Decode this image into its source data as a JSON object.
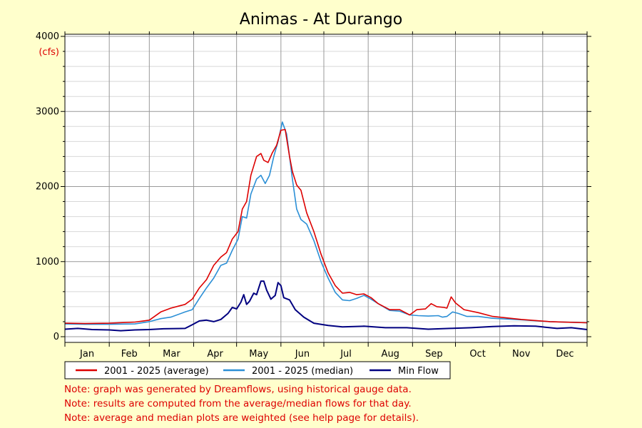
{
  "chart_data": {
    "type": "line",
    "title": "Animas - At Durango",
    "ylabel": "(cfs)",
    "xlabel": "",
    "ylim": [
      0,
      4000
    ],
    "yticks": [
      0,
      1000,
      2000,
      3000,
      4000
    ],
    "xlim": [
      1,
      366
    ],
    "months": [
      "Jan",
      "Feb",
      "Mar",
      "Apr",
      "May",
      "Jun",
      "Jul",
      "Aug",
      "Sep",
      "Oct",
      "Nov",
      "Dec"
    ],
    "grid": true,
    "legend_position": "bottom",
    "series": [
      {
        "name": "2001 - 2025 (average)",
        "color": "#dd0000",
        "points": [
          [
            1,
            180
          ],
          [
            15,
            175
          ],
          [
            32,
            180
          ],
          [
            50,
            195
          ],
          [
            60,
            220
          ],
          [
            68,
            330
          ],
          [
            75,
            380
          ],
          [
            85,
            430
          ],
          [
            90,
            500
          ],
          [
            95,
            650
          ],
          [
            100,
            760
          ],
          [
            105,
            950
          ],
          [
            110,
            1060
          ],
          [
            114,
            1120
          ],
          [
            118,
            1300
          ],
          [
            122,
            1400
          ],
          [
            125,
            1700
          ],
          [
            128,
            1800
          ],
          [
            131,
            2150
          ],
          [
            135,
            2400
          ],
          [
            138,
            2440
          ],
          [
            140,
            2350
          ],
          [
            143,
            2320
          ],
          [
            146,
            2450
          ],
          [
            149,
            2550
          ],
          [
            152,
            2750
          ],
          [
            155,
            2760
          ],
          [
            158,
            2400
          ],
          [
            160,
            2200
          ],
          [
            163,
            2020
          ],
          [
            166,
            1950
          ],
          [
            170,
            1650
          ],
          [
            175,
            1400
          ],
          [
            180,
            1100
          ],
          [
            185,
            850
          ],
          [
            190,
            680
          ],
          [
            195,
            580
          ],
          [
            200,
            590
          ],
          [
            205,
            560
          ],
          [
            210,
            570
          ],
          [
            215,
            520
          ],
          [
            220,
            440
          ],
          [
            228,
            360
          ],
          [
            235,
            360
          ],
          [
            242,
            290
          ],
          [
            247,
            360
          ],
          [
            253,
            370
          ],
          [
            257,
            440
          ],
          [
            261,
            400
          ],
          [
            266,
            390
          ],
          [
            268,
            380
          ],
          [
            271,
            530
          ],
          [
            274,
            450
          ],
          [
            280,
            360
          ],
          [
            290,
            320
          ],
          [
            300,
            270
          ],
          [
            320,
            230
          ],
          [
            340,
            200
          ],
          [
            366,
            185
          ]
        ]
      },
      {
        "name": "2001 - 2025 (median)",
        "color": "#2b8fd6",
        "points": [
          [
            1,
            170
          ],
          [
            15,
            165
          ],
          [
            32,
            165
          ],
          [
            50,
            170
          ],
          [
            60,
            200
          ],
          [
            68,
            240
          ],
          [
            75,
            260
          ],
          [
            85,
            330
          ],
          [
            90,
            360
          ],
          [
            95,
            510
          ],
          [
            100,
            650
          ],
          [
            105,
            780
          ],
          [
            110,
            950
          ],
          [
            114,
            980
          ],
          [
            118,
            1150
          ],
          [
            122,
            1300
          ],
          [
            125,
            1600
          ],
          [
            128,
            1580
          ],
          [
            131,
            1900
          ],
          [
            135,
            2100
          ],
          [
            138,
            2150
          ],
          [
            141,
            2040
          ],
          [
            144,
            2150
          ],
          [
            147,
            2400
          ],
          [
            150,
            2600
          ],
          [
            153,
            2860
          ],
          [
            156,
            2700
          ],
          [
            158,
            2400
          ],
          [
            160,
            2100
          ],
          [
            163,
            1700
          ],
          [
            166,
            1560
          ],
          [
            170,
            1500
          ],
          [
            175,
            1280
          ],
          [
            180,
            1000
          ],
          [
            185,
            780
          ],
          [
            190,
            590
          ],
          [
            195,
            490
          ],
          [
            200,
            480
          ],
          [
            205,
            510
          ],
          [
            210,
            550
          ],
          [
            215,
            500
          ],
          [
            220,
            440
          ],
          [
            228,
            350
          ],
          [
            235,
            340
          ],
          [
            242,
            290
          ],
          [
            248,
            280
          ],
          [
            255,
            275
          ],
          [
            262,
            280
          ],
          [
            265,
            260
          ],
          [
            268,
            270
          ],
          [
            272,
            330
          ],
          [
            276,
            310
          ],
          [
            282,
            270
          ],
          [
            290,
            270
          ],
          [
            300,
            245
          ],
          [
            320,
            225
          ],
          [
            340,
            200
          ],
          [
            366,
            185
          ]
        ]
      },
      {
        "name": "Min Flow",
        "color": "#000080",
        "points": [
          [
            1,
            100
          ],
          [
            10,
            110
          ],
          [
            20,
            95
          ],
          [
            32,
            90
          ],
          [
            40,
            80
          ],
          [
            50,
            90
          ],
          [
            60,
            95
          ],
          [
            70,
            105
          ],
          [
            85,
            110
          ],
          [
            90,
            160
          ],
          [
            95,
            210
          ],
          [
            100,
            220
          ],
          [
            105,
            200
          ],
          [
            110,
            230
          ],
          [
            115,
            310
          ],
          [
            118,
            390
          ],
          [
            121,
            370
          ],
          [
            124,
            460
          ],
          [
            126,
            560
          ],
          [
            128,
            430
          ],
          [
            130,
            470
          ],
          [
            133,
            580
          ],
          [
            135,
            560
          ],
          [
            138,
            740
          ],
          [
            140,
            740
          ],
          [
            142,
            620
          ],
          [
            145,
            500
          ],
          [
            148,
            550
          ],
          [
            150,
            720
          ],
          [
            152,
            680
          ],
          [
            154,
            520
          ],
          [
            158,
            490
          ],
          [
            162,
            360
          ],
          [
            168,
            260
          ],
          [
            175,
            180
          ],
          [
            185,
            150
          ],
          [
            195,
            130
          ],
          [
            210,
            140
          ],
          [
            225,
            120
          ],
          [
            240,
            120
          ],
          [
            255,
            100
          ],
          [
            270,
            110
          ],
          [
            285,
            120
          ],
          [
            300,
            135
          ],
          [
            315,
            145
          ],
          [
            330,
            140
          ],
          [
            345,
            110
          ],
          [
            355,
            120
          ],
          [
            366,
            95
          ]
        ]
      }
    ]
  },
  "notes": [
    "Note: graph was generated by Dreamflows, using historical gauge data.",
    "Note: results are computed from the average/median flows for that day.",
    "Note: average and median plots are weighted (see help page for details)."
  ]
}
